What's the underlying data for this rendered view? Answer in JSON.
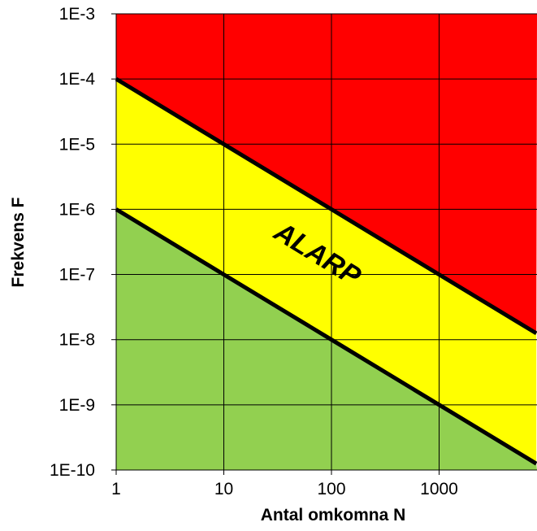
{
  "chart_data": {
    "type": "area",
    "xlabel": "Antal omkomna N",
    "ylabel": "Frekvens F",
    "x_scale": "log",
    "y_scale": "log",
    "xlim": [
      1,
      8000
    ],
    "ylim": [
      1e-10,
      0.001
    ],
    "x_ticks": [
      {
        "value": 1,
        "label": "1"
      },
      {
        "value": 10,
        "label": "10"
      },
      {
        "value": 100,
        "label": "100"
      },
      {
        "value": 1000,
        "label": "1000"
      }
    ],
    "y_ticks": [
      {
        "value": 0.001,
        "label": "1E-3"
      },
      {
        "value": 0.0001,
        "label": "1E-4"
      },
      {
        "value": 1e-05,
        "label": "1E-5"
      },
      {
        "value": 1e-06,
        "label": "1E-6"
      },
      {
        "value": 1e-07,
        "label": "1E-7"
      },
      {
        "value": 1e-08,
        "label": "1E-8"
      },
      {
        "value": 1e-09,
        "label": "1E-9"
      },
      {
        "value": 1e-10,
        "label": "1E-10"
      }
    ],
    "grid": true,
    "series": [
      {
        "x": [
          1,
          10,
          100,
          1000,
          8000
        ],
        "y": [
          0.0001,
          1e-05,
          1e-06,
          1e-07,
          1.25e-08
        ]
      },
      {
        "x": [
          1,
          10,
          100,
          1000,
          8000
        ],
        "y": [
          1e-06,
          1e-07,
          1e-08,
          1e-09,
          1.25e-10
        ]
      }
    ],
    "regions": [
      {
        "color": "#ff0000",
        "label": ""
      },
      {
        "color": "#ffff00",
        "label": "ALARP"
      },
      {
        "color": "#92d050",
        "label": ""
      }
    ],
    "colors": {
      "unacceptable": "#ff0000",
      "alarp": "#ffff00",
      "acceptable": "#92d050",
      "lines": "#000000",
      "grid": "#000000"
    }
  }
}
